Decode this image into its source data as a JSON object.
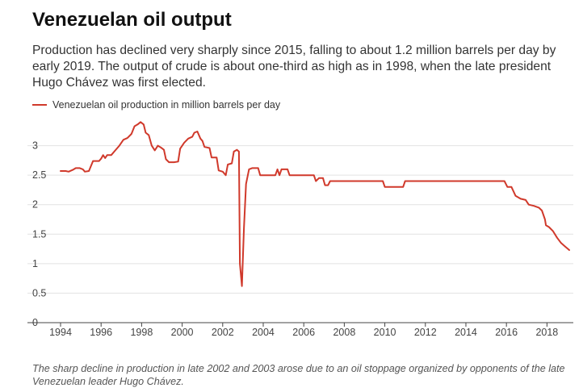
{
  "title": "Venezuelan oil output",
  "subtitle": "Production has declined very sharply since 2015, falling to about 1.2 million barrels per day by early 2019. The output of crude is about one-third as high as in 1998, when the late president Hugo Chávez was first elected.",
  "note": "The sharp decline in production in late 2002 and 2003 arose due to an oil stoppage organized by opponents of the late Venezuelan leader Hugo Chávez.",
  "chart_data": {
    "type": "line",
    "title": "",
    "xlabel": "",
    "ylabel": "",
    "xlim": [
      1994,
      2019.3
    ],
    "ylim": [
      0,
      3.5
    ],
    "yticks": [
      0,
      0.5,
      1,
      1.5,
      2,
      2.5,
      3
    ],
    "ytick_labels": [
      "0",
      "0.5",
      "1",
      "1.5",
      "2",
      "2.5",
      "3"
    ],
    "xticks": [
      1994,
      1996,
      1998,
      2000,
      2002,
      2004,
      2006,
      2008,
      2010,
      2012,
      2014,
      2016,
      2018
    ],
    "xtick_labels": [
      "1994",
      "1996",
      "1998",
      "2000",
      "2002",
      "2004",
      "2006",
      "2008",
      "2010",
      "2012",
      "2014",
      "2016",
      "2018"
    ],
    "grid": true,
    "legend_position": "top-left",
    "series": [
      {
        "name": "Venezuelan oil production in million barrels per day",
        "color": "#d0392b",
        "points": [
          [
            1994.0,
            2.57
          ],
          [
            1994.25,
            2.57
          ],
          [
            1994.4,
            2.56
          ],
          [
            1994.6,
            2.59
          ],
          [
            1994.75,
            2.62
          ],
          [
            1994.95,
            2.62
          ],
          [
            1995.1,
            2.6
          ],
          [
            1995.2,
            2.56
          ],
          [
            1995.4,
            2.57
          ],
          [
            1995.6,
            2.74
          ],
          [
            1995.9,
            2.74
          ],
          [
            1996.0,
            2.78
          ],
          [
            1996.1,
            2.84
          ],
          [
            1996.2,
            2.79
          ],
          [
            1996.3,
            2.84
          ],
          [
            1996.5,
            2.84
          ],
          [
            1996.7,
            2.92
          ],
          [
            1996.9,
            3.0
          ],
          [
            1997.1,
            3.1
          ],
          [
            1997.3,
            3.13
          ],
          [
            1997.5,
            3.2
          ],
          [
            1997.65,
            3.33
          ],
          [
            1997.8,
            3.36
          ],
          [
            1997.95,
            3.4
          ],
          [
            1998.1,
            3.36
          ],
          [
            1998.2,
            3.22
          ],
          [
            1998.35,
            3.18
          ],
          [
            1998.5,
            3.0
          ],
          [
            1998.65,
            2.92
          ],
          [
            1998.8,
            3.0
          ],
          [
            1998.95,
            2.97
          ],
          [
            1999.1,
            2.93
          ],
          [
            1999.2,
            2.77
          ],
          [
            1999.35,
            2.72
          ],
          [
            1999.6,
            2.72
          ],
          [
            1999.8,
            2.73
          ],
          [
            1999.9,
            2.95
          ],
          [
            2000.1,
            3.05
          ],
          [
            2000.3,
            3.12
          ],
          [
            2000.5,
            3.15
          ],
          [
            2000.6,
            3.22
          ],
          [
            2000.75,
            3.24
          ],
          [
            2000.9,
            3.12
          ],
          [
            2001.0,
            3.08
          ],
          [
            2001.1,
            2.98
          ],
          [
            2001.35,
            2.96
          ],
          [
            2001.45,
            2.8
          ],
          [
            2001.7,
            2.8
          ],
          [
            2001.8,
            2.58
          ],
          [
            2002.0,
            2.56
          ],
          [
            2002.15,
            2.5
          ],
          [
            2002.25,
            2.68
          ],
          [
            2002.45,
            2.7
          ],
          [
            2002.55,
            2.9
          ],
          [
            2002.7,
            2.93
          ],
          [
            2002.8,
            2.9
          ],
          [
            2002.85,
            1.0
          ],
          [
            2002.95,
            0.62
          ],
          [
            2003.05,
            1.6
          ],
          [
            2003.15,
            2.35
          ],
          [
            2003.3,
            2.6
          ],
          [
            2003.45,
            2.62
          ],
          [
            2003.75,
            2.62
          ],
          [
            2003.85,
            2.5
          ],
          [
            2004.6,
            2.5
          ],
          [
            2004.7,
            2.6
          ],
          [
            2004.8,
            2.5
          ],
          [
            2004.9,
            2.6
          ],
          [
            2005.2,
            2.6
          ],
          [
            2005.3,
            2.5
          ],
          [
            2006.5,
            2.5
          ],
          [
            2006.6,
            2.4
          ],
          [
            2006.75,
            2.45
          ],
          [
            2006.95,
            2.45
          ],
          [
            2007.05,
            2.33
          ],
          [
            2007.2,
            2.33
          ],
          [
            2007.3,
            2.4
          ],
          [
            2009.9,
            2.4
          ],
          [
            2010.0,
            2.3
          ],
          [
            2010.9,
            2.3
          ],
          [
            2011.0,
            2.4
          ],
          [
            2015.9,
            2.4
          ],
          [
            2016.05,
            2.3
          ],
          [
            2016.25,
            2.3
          ],
          [
            2016.45,
            2.15
          ],
          [
            2016.7,
            2.1
          ],
          [
            2016.95,
            2.08
          ],
          [
            2017.1,
            2.0
          ],
          [
            2017.35,
            1.98
          ],
          [
            2017.6,
            1.95
          ],
          [
            2017.75,
            1.9
          ],
          [
            2017.9,
            1.75
          ],
          [
            2017.95,
            1.65
          ],
          [
            2018.1,
            1.62
          ],
          [
            2018.3,
            1.55
          ],
          [
            2018.5,
            1.44
          ],
          [
            2018.7,
            1.35
          ],
          [
            2018.9,
            1.29
          ],
          [
            2019.1,
            1.23
          ]
        ]
      }
    ]
  }
}
